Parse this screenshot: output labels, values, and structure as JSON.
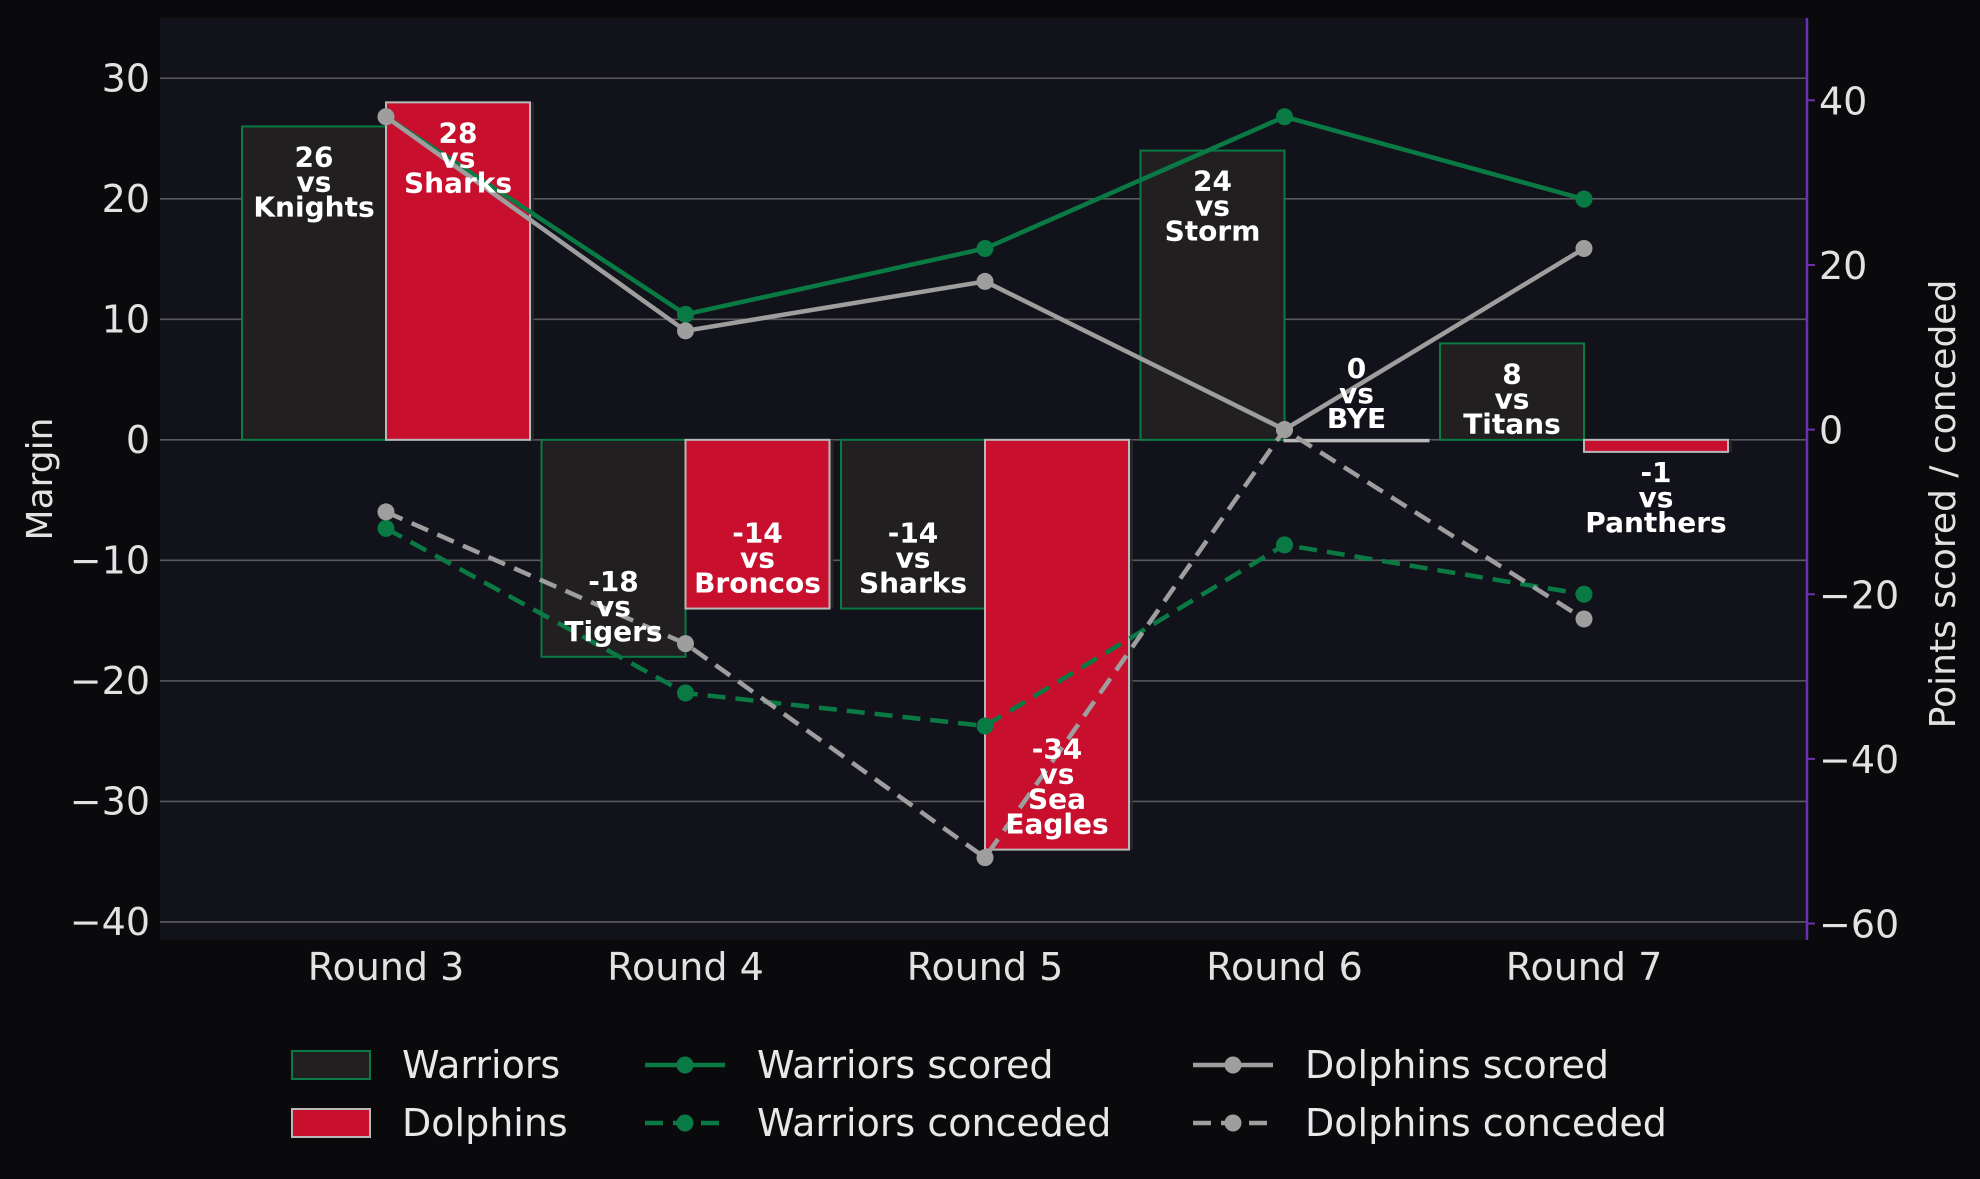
{
  "chart_data": {
    "type": "bar",
    "categories": [
      "Round 3",
      "Round 4",
      "Round 5",
      "Round 6",
      "Round 7"
    ],
    "ylabel": "Margin",
    "y2label": "Points scored / conceded",
    "ylim": [
      -41.5,
      35
    ],
    "y2lim": [
      -62,
      50
    ],
    "yticks": [
      30,
      20,
      10,
      0,
      -10,
      -20,
      -30,
      -40
    ],
    "yticks_text": [
      "30",
      "20",
      "10",
      "0",
      "−10",
      "−20",
      "−30",
      "−40"
    ],
    "y2ticks": [
      40,
      20,
      0,
      -20,
      -40,
      -60
    ],
    "y2ticks_text": [
      "40",
      "20",
      "0",
      "−20",
      "−40",
      "−60"
    ],
    "grid": true,
    "legend_position": "bottom",
    "bar_series": [
      {
        "name": "Warriors",
        "fill": "#221f20",
        "edge": "#0a7a45",
        "values": [
          26,
          -18,
          -14,
          24,
          8
        ],
        "labels": [
          [
            "26",
            "vs",
            "Knights"
          ],
          [
            "-18",
            "vs",
            "Tigers"
          ],
          [
            "-14",
            "vs",
            "Sharks"
          ],
          [
            "24",
            "vs",
            "Storm"
          ],
          [
            "8",
            "vs",
            "Titans"
          ]
        ]
      },
      {
        "name": "Dolphins",
        "fill": "#c8102e",
        "edge": "#b8b8b8",
        "values": [
          28,
          -14,
          -34,
          0,
          -1
        ],
        "labels": [
          [
            "28",
            "vs",
            "Sharks"
          ],
          [
            "-14",
            "vs",
            "Broncos"
          ],
          [
            "-34",
            "vs",
            "Sea",
            "Eagles"
          ],
          [
            "0",
            "vs",
            "BYE"
          ],
          [
            "-1",
            "vs",
            "Panthers"
          ]
        ]
      }
    ],
    "line_series": [
      {
        "name": "Warriors scored",
        "color": "#0a7a45",
        "dashed": false,
        "values": [
          38,
          14,
          22,
          38,
          28
        ]
      },
      {
        "name": "Warriors conceded",
        "color": "#0a7a45",
        "dashed": true,
        "values": [
          -12,
          -32,
          -36,
          -14,
          -20
        ]
      },
      {
        "name": "Dolphins scored",
        "color": "#9e9e9e",
        "dashed": false,
        "values": [
          38,
          12,
          18,
          0,
          22
        ]
      },
      {
        "name": "Dolphins conceded",
        "color": "#9e9e9e",
        "dashed": true,
        "values": [
          -10,
          -26,
          -52,
          0,
          -23
        ]
      }
    ],
    "colors": {
      "background": "#0a0a0d",
      "plot_background": "#12131a",
      "grid": "#5a5a5e",
      "right_spine": "#6b2fb3"
    }
  }
}
